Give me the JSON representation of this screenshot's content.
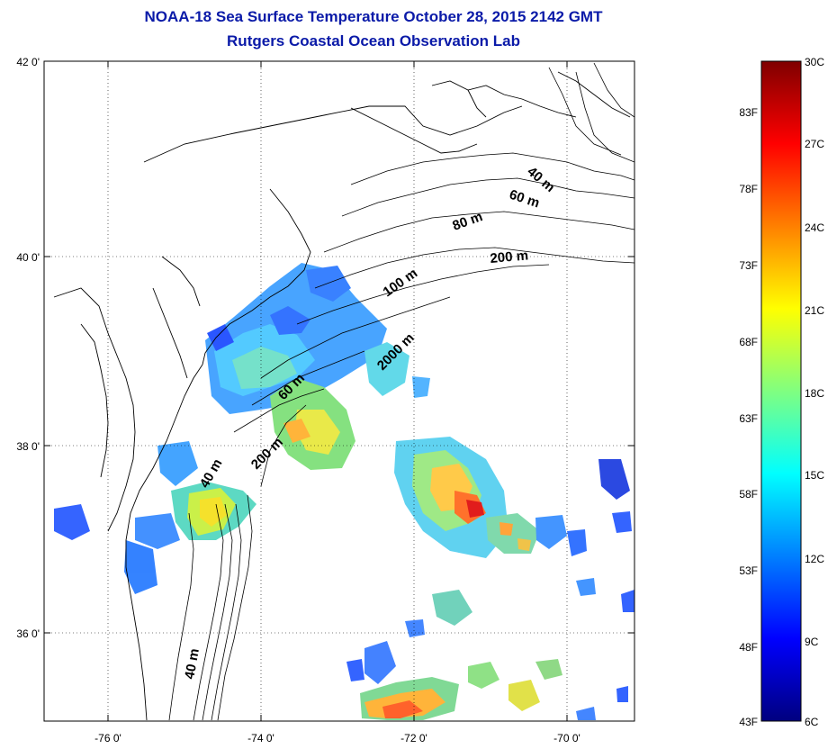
{
  "header": {
    "title": "NOAA-18 Sea Surface Temperature October 28, 2015 2142 GMT",
    "subtitle": "Rutgers Coastal Ocean Observation Lab"
  },
  "map": {
    "lat_ticks": [
      "42 0'",
      "40 0'",
      "38 0'",
      "36 0'"
    ],
    "lon_ticks": [
      "-76 0'",
      "-74 0'",
      "-72 0'",
      "-70 0'"
    ],
    "contour_labels": [
      "40 m",
      "60 m",
      "80 m",
      "200 m",
      "100 m",
      "2000 m",
      "60 m",
      "200 m",
      "40 m",
      "40 m"
    ]
  },
  "colorbar": {
    "celsius": [
      "30C",
      "27C",
      "24C",
      "21C",
      "18C",
      "15C",
      "12C",
      "9C",
      "6C"
    ],
    "fahrenheit": [
      "83F",
      "78F",
      "73F",
      "68F",
      "63F",
      "58F",
      "53F",
      "48F",
      "43F"
    ],
    "colors": [
      "#7f0000",
      "#ff0000",
      "#ff8000",
      "#ffff00",
      "#80ff80",
      "#00ffff",
      "#0080ff",
      "#0000ff",
      "#00007f"
    ]
  }
}
